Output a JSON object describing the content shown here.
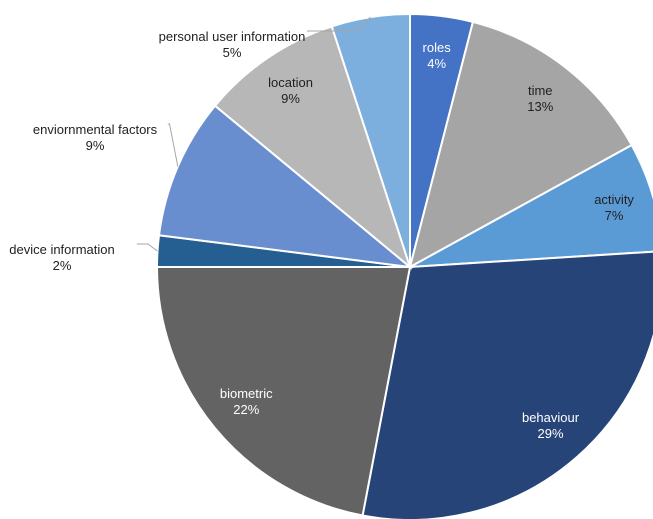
{
  "chart_data": {
    "type": "pie",
    "categories": [
      "roles",
      "time",
      "activity",
      "behaviour",
      "biometric",
      "device information",
      "enviornmental factors",
      "location",
      "personal user information"
    ],
    "values": [
      4,
      13,
      7,
      29,
      22,
      2,
      9,
      9,
      5
    ],
    "value_labels": [
      "4%",
      "13%",
      "7%",
      "29%",
      "22%",
      "2%",
      "9%",
      "9%",
      "5%"
    ],
    "colors": [
      "#4472c4",
      "#a5a5a5",
      "#5b9bd5",
      "#264478",
      "#636363",
      "#255e91",
      "#698ed0",
      "#b7b7b7",
      "#7cafdd"
    ]
  }
}
